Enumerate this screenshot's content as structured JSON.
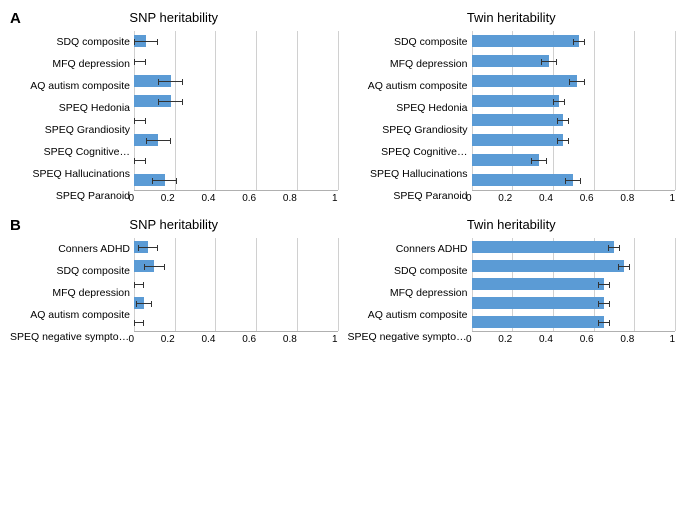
{
  "panelA": {
    "label": "A",
    "left": {
      "title": "SNP heritability",
      "xmax": 1,
      "xticks": [
        0,
        0.2,
        0.4,
        0.6,
        0.8,
        1
      ],
      "categories": [
        "SDQ composite",
        "MFQ depression",
        "AQ autism composite",
        "SPEQ Hedonia",
        "SPEQ Grandiosity",
        "SPEQ Cognitive…",
        "SPEQ Hallucinations",
        "SPEQ Paranoid"
      ],
      "values": [
        0.06,
        0.0,
        0.18,
        0.18,
        0.0,
        0.12,
        0.0,
        0.15
      ],
      "err": [
        0.06,
        0.06,
        0.06,
        0.06,
        0.06,
        0.06,
        0.06,
        0.06
      ],
      "bar_color": "#5b9bd5"
    },
    "right": {
      "title": "Twin heritability",
      "xmax": 1,
      "xticks": [
        0,
        0.2,
        0.4,
        0.6,
        0.8,
        1
      ],
      "categories": [
        "SDQ composite",
        "MFQ depression",
        "AQ autism composite",
        "SPEQ Hedonia",
        "SPEQ Grandiosity",
        "SPEQ Cognitive…",
        "SPEQ Hallucinations",
        "SPEQ Paranoid"
      ],
      "values": [
        0.53,
        0.38,
        0.52,
        0.43,
        0.45,
        0.45,
        0.33,
        0.5
      ],
      "err": [
        0.03,
        0.04,
        0.04,
        0.03,
        0.03,
        0.03,
        0.04,
        0.04
      ],
      "bar_color": "#5b9bd5"
    }
  },
  "panelB": {
    "label": "B",
    "left": {
      "title": "SNP heritability",
      "xmax": 1,
      "xticks": [
        0,
        0.2,
        0.4,
        0.6,
        0.8,
        1
      ],
      "categories": [
        "Conners ADHD",
        "SDQ composite",
        "MFQ depression",
        "AQ autism composite",
        "SPEQ negative symptoms"
      ],
      "values": [
        0.07,
        0.1,
        0.0,
        0.05,
        0.0
      ],
      "err": [
        0.05,
        0.05,
        0.05,
        0.04,
        0.05
      ],
      "bar_color": "#5b9bd5"
    },
    "right": {
      "title": "Twin heritability",
      "xmax": 1,
      "xticks": [
        0,
        0.2,
        0.4,
        0.6,
        0.8,
        1
      ],
      "categories": [
        "Conners ADHD",
        "SDQ composite",
        "MFQ depression",
        "AQ autism composite",
        "SPEQ negative symptoms"
      ],
      "values": [
        0.7,
        0.75,
        0.65,
        0.65,
        0.65
      ],
      "err": [
        0.03,
        0.03,
        0.03,
        0.03,
        0.03
      ],
      "bar_color": "#5b9bd5"
    }
  }
}
